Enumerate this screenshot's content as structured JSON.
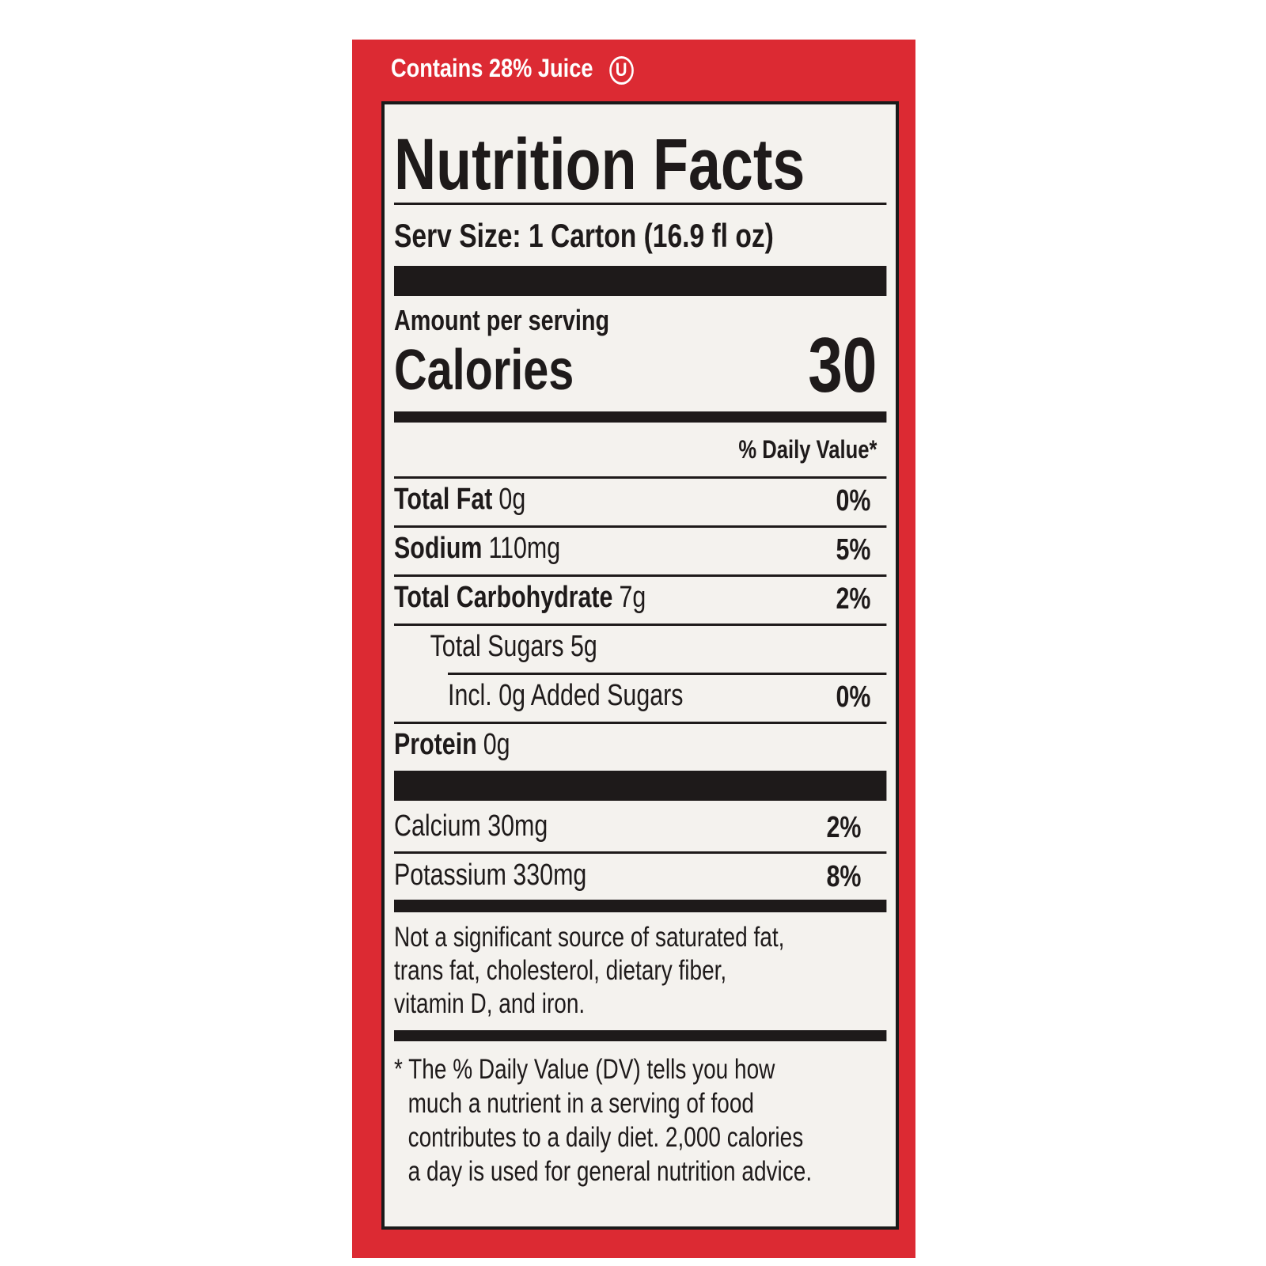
{
  "header": {
    "juice": "Contains 28% Juice",
    "symbol": "U"
  },
  "label": {
    "title": "Nutrition Facts",
    "serving": "Serv Size: 1 Carton  (16.9 fl oz)",
    "amount_per_serving": "Amount per serving",
    "calories_label": "Calories",
    "calories_value": "30",
    "dv_header": "% Daily Value*",
    "rows": [
      {
        "name": "Total Fat",
        "amount": "0g",
        "dv": "0%"
      },
      {
        "name": "Sodium",
        "amount": "110mg",
        "dv": "5%"
      },
      {
        "name": "Total Carbohydrate",
        "amount": "7g",
        "dv": "2%"
      },
      {
        "name": "Total Sugars 5g"
      },
      {
        "name": "Incl. 0g Added Sugars",
        "dv": "0%"
      },
      {
        "name": "Protein",
        "amount": "0g"
      },
      {
        "name": "Calcium 30mg",
        "dv": "2%"
      },
      {
        "name": "Potassium 330mg",
        "dv": "8%"
      }
    ],
    "note": [
      "Not a significant source of saturated fat,",
      "trans fat, cholesterol, dietary fiber,",
      "vitamin D, and iron."
    ],
    "footnote": [
      "* The % Daily Value (DV) tells you how",
      "much a nutrient in a serving of food",
      "contributes to a daily diet. 2,000 calories",
      "a day is used for general nutrition advice."
    ]
  }
}
